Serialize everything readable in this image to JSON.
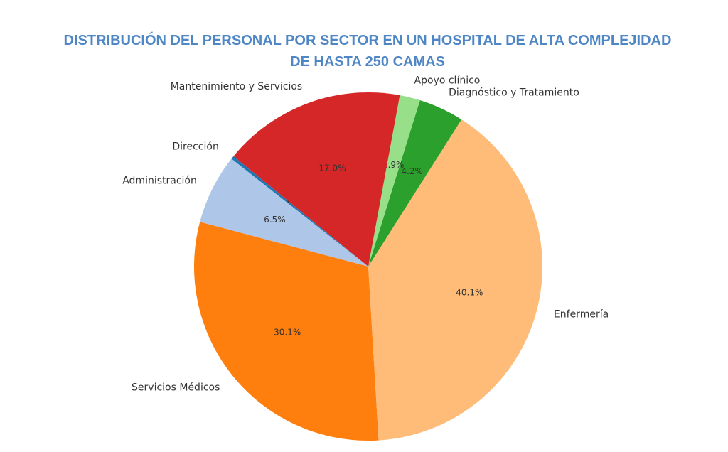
{
  "chart_data": {
    "type": "pie",
    "title_lines": [
      "DISTRIBUCIÓN DEL PERSONAL POR SECTOR EN UN HOSPITAL DE ALTA COMPLEJIDAD",
      "DE HASTA 250 CAMAS"
    ],
    "slices": [
      {
        "label": "Dirección",
        "value": 0.3,
        "pct_label": "0.3%",
        "color": "#1f77b4"
      },
      {
        "label": "Administración",
        "value": 6.5,
        "pct_label": "6.5%",
        "color": "#aec7e8"
      },
      {
        "label": "Servicios Médicos",
        "value": 30.1,
        "pct_label": "30.1%",
        "color": "#ff7f0e"
      },
      {
        "label": "Enfermería",
        "value": 40.1,
        "pct_label": "40.1%",
        "color": "#ffbb78"
      },
      {
        "label": "Diagnóstico y Tratamiento",
        "value": 4.2,
        "pct_label": "4.2%",
        "color": "#2ca02c"
      },
      {
        "label": "Apoyo clínico",
        "value": 1.9,
        "pct_label": "1.9%",
        "color": "#98df8a"
      },
      {
        "label": "Mantenimiento y Servicios",
        "value": 17.0,
        "pct_label": "17.0%",
        "color": "#d62728"
      }
    ],
    "title_color": "#4f86c6"
  }
}
